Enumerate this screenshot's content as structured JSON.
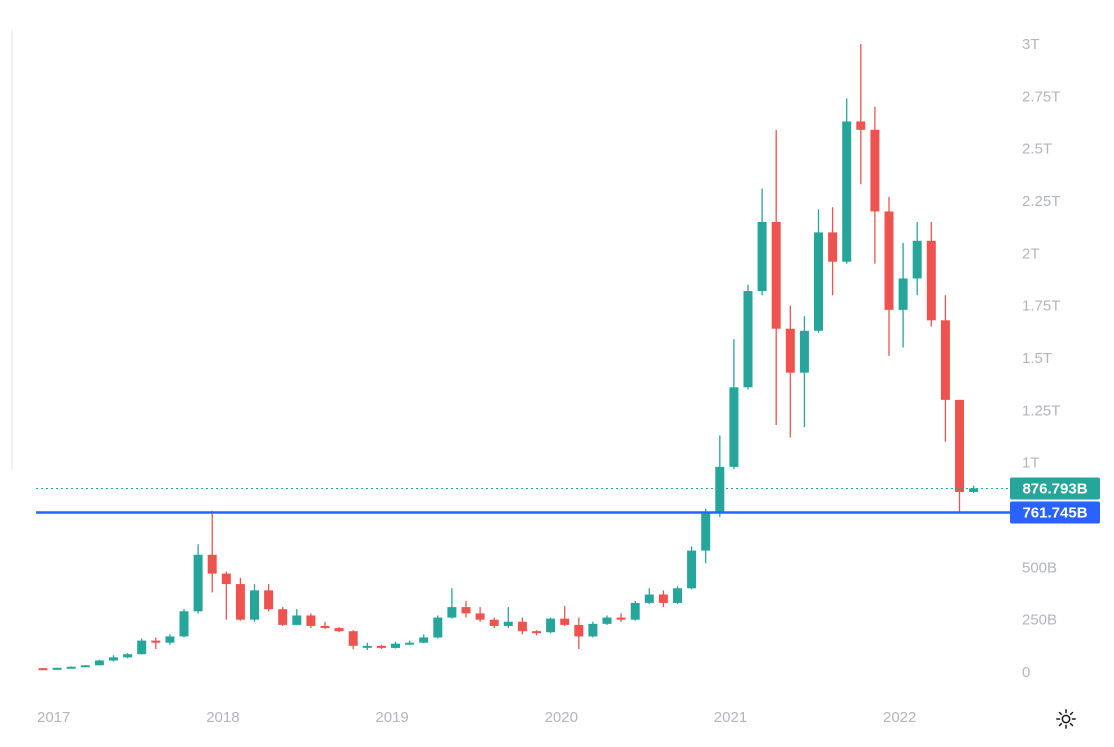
{
  "chart_data": {
    "type": "candlestick",
    "interval": "1M",
    "x_tick_labels": [
      "2017",
      "2018",
      "2019",
      "2020",
      "2021",
      "2022"
    ],
    "y_tick_labels": [
      "0",
      "250B",
      "500B",
      "1T",
      "1.25T",
      "1.5T",
      "1.75T",
      "2T",
      "2.25T",
      "2.5T",
      "2.75T",
      "3T"
    ],
    "ylim": [
      0,
      3000
    ],
    "y_unit": "B",
    "current_value": {
      "label": "876.793B",
      "value": 876.793,
      "color": "#26a69a",
      "line_style": "dotted"
    },
    "horizontal_line": {
      "label": "761.745B",
      "value": 761.745,
      "color": "#2962ff",
      "line_style": "solid"
    },
    "colors": {
      "up": "#26a69a",
      "down": "#ef5350",
      "axis_text": "#b2b5be"
    },
    "candles": [
      [
        "2017-01",
        18,
        17,
        19,
        16
      ],
      [
        "2017-02",
        17,
        20,
        21,
        16
      ],
      [
        "2017-03",
        20,
        25,
        27,
        19
      ],
      [
        "2017-04",
        25,
        32,
        33,
        24
      ],
      [
        "2017-05",
        32,
        55,
        58,
        31
      ],
      [
        "2017-06",
        55,
        70,
        80,
        50
      ],
      [
        "2017-07",
        70,
        85,
        90,
        65
      ],
      [
        "2017-08",
        85,
        150,
        160,
        84
      ],
      [
        "2017-09",
        150,
        140,
        165,
        110
      ],
      [
        "2017-10",
        140,
        170,
        180,
        130
      ],
      [
        "2017-11",
        170,
        290,
        300,
        165
      ],
      [
        "2017-12",
        290,
        560,
        610,
        280
      ],
      [
        "2018-01",
        560,
        470,
        770,
        380
      ],
      [
        "2018-02",
        470,
        420,
        480,
        250
      ],
      [
        "2018-03",
        420,
        250,
        450,
        245
      ],
      [
        "2018-04",
        250,
        390,
        420,
        240
      ],
      [
        "2018-05",
        390,
        300,
        420,
        290
      ],
      [
        "2018-06",
        300,
        225,
        310,
        220
      ],
      [
        "2018-07",
        225,
        270,
        300,
        225
      ],
      [
        "2018-08",
        270,
        220,
        280,
        210
      ],
      [
        "2018-09",
        220,
        210,
        240,
        205
      ],
      [
        "2018-10",
        210,
        195,
        215,
        190
      ],
      [
        "2018-11",
        195,
        125,
        200,
        110
      ],
      [
        "2018-12",
        125,
        125,
        140,
        105
      ],
      [
        "2019-01",
        125,
        115,
        130,
        110
      ],
      [
        "2019-02",
        115,
        135,
        145,
        112
      ],
      [
        "2019-03",
        135,
        140,
        150,
        130
      ],
      [
        "2019-04",
        140,
        165,
        180,
        138
      ],
      [
        "2019-05",
        165,
        260,
        270,
        160
      ],
      [
        "2019-06",
        260,
        310,
        400,
        255
      ],
      [
        "2019-07",
        310,
        280,
        340,
        260
      ],
      [
        "2019-08",
        280,
        250,
        310,
        240
      ],
      [
        "2019-09",
        250,
        220,
        260,
        210
      ],
      [
        "2019-10",
        220,
        240,
        310,
        210
      ],
      [
        "2019-11",
        240,
        195,
        260,
        180
      ],
      [
        "2019-12",
        195,
        190,
        200,
        175
      ],
      [
        "2020-01",
        190,
        255,
        260,
        185
      ],
      [
        "2020-02",
        255,
        225,
        315,
        220
      ],
      [
        "2020-03",
        225,
        170,
        260,
        110
      ],
      [
        "2020-04",
        170,
        230,
        240,
        165
      ],
      [
        "2020-05",
        230,
        260,
        270,
        225
      ],
      [
        "2020-06",
        260,
        250,
        280,
        240
      ],
      [
        "2020-07",
        250,
        330,
        340,
        245
      ],
      [
        "2020-08",
        330,
        370,
        400,
        325
      ],
      [
        "2020-09",
        370,
        330,
        390,
        310
      ],
      [
        "2020-10",
        330,
        400,
        410,
        325
      ],
      [
        "2020-11",
        400,
        580,
        600,
        395
      ],
      [
        "2020-12",
        580,
        760,
        780,
        520
      ],
      [
        "2021-01",
        760,
        980,
        1130,
        740
      ],
      [
        "2021-02",
        980,
        1360,
        1590,
        970
      ],
      [
        "2021-03",
        1360,
        1820,
        1850,
        1350
      ],
      [
        "2021-04",
        1820,
        2150,
        2310,
        1800
      ],
      [
        "2021-05",
        2150,
        1640,
        2590,
        1180
      ],
      [
        "2021-06",
        1640,
        1430,
        1750,
        1120
      ],
      [
        "2021-07",
        1430,
        1630,
        1700,
        1170
      ],
      [
        "2021-08",
        1630,
        2100,
        2210,
        1620
      ],
      [
        "2021-09",
        2100,
        1960,
        2220,
        1800
      ],
      [
        "2021-10",
        1960,
        2630,
        2740,
        1950
      ],
      [
        "2021-11",
        2630,
        2590,
        3000,
        2330
      ],
      [
        "2021-12",
        2590,
        2200,
        2700,
        1950
      ],
      [
        "2022-01",
        2200,
        1730,
        2270,
        1510
      ],
      [
        "2022-02",
        1730,
        1880,
        2050,
        1550
      ],
      [
        "2022-03",
        1880,
        2060,
        2150,
        1800
      ],
      [
        "2022-04",
        2060,
        1680,
        2150,
        1650
      ],
      [
        "2022-05",
        1680,
        1300,
        1800,
        1100
      ],
      [
        "2022-06",
        1300,
        860,
        1300,
        762
      ],
      [
        "2022-07",
        860,
        877,
        890,
        855
      ]
    ]
  },
  "icons": {
    "settings": "gear-icon"
  }
}
